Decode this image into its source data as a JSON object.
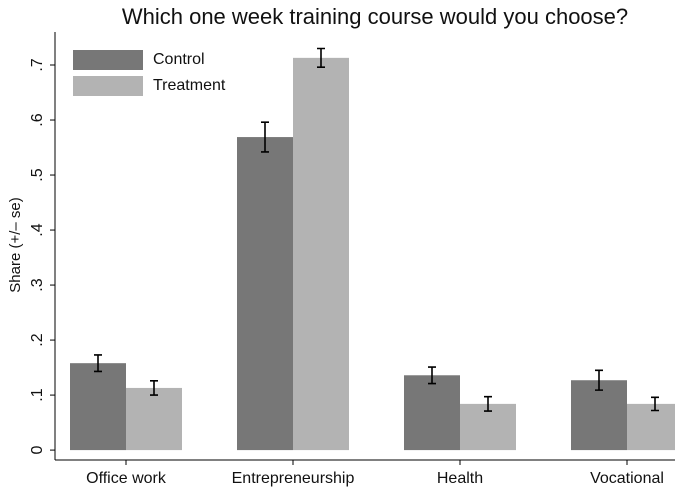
{
  "chart_data": {
    "type": "bar",
    "title": "Which one week training course would you choose?",
    "ylabel": "Share (+/– se)",
    "categories": [
      "Office work",
      "Entrepreneurship",
      "Health",
      "Vocational"
    ],
    "series": [
      {
        "name": "Control",
        "color": "#777777",
        "values": [
          0.158,
          0.569,
          0.136,
          0.127
        ],
        "errors": [
          0.015,
          0.027,
          0.015,
          0.018
        ]
      },
      {
        "name": "Treatment",
        "color": "#b3b3b3",
        "values": [
          0.113,
          0.713,
          0.084,
          0.084
        ],
        "errors": [
          0.013,
          0.017,
          0.013,
          0.012
        ]
      }
    ],
    "ylim": [
      -0.018,
      0.76
    ],
    "yticks": [
      0,
      {
        "value": 0.1,
        "label": ".1"
      },
      {
        "value": 0.2,
        "label": ".2"
      },
      {
        "value": 0.3,
        "label": ".3"
      },
      {
        "value": 0.4,
        "label": ".4"
      },
      {
        "value": 0.5,
        "label": ".5"
      },
      {
        "value": 0.6,
        "label": ".6"
      },
      {
        "value": 0.7,
        "label": ".7"
      }
    ],
    "legend": "top-left"
  }
}
